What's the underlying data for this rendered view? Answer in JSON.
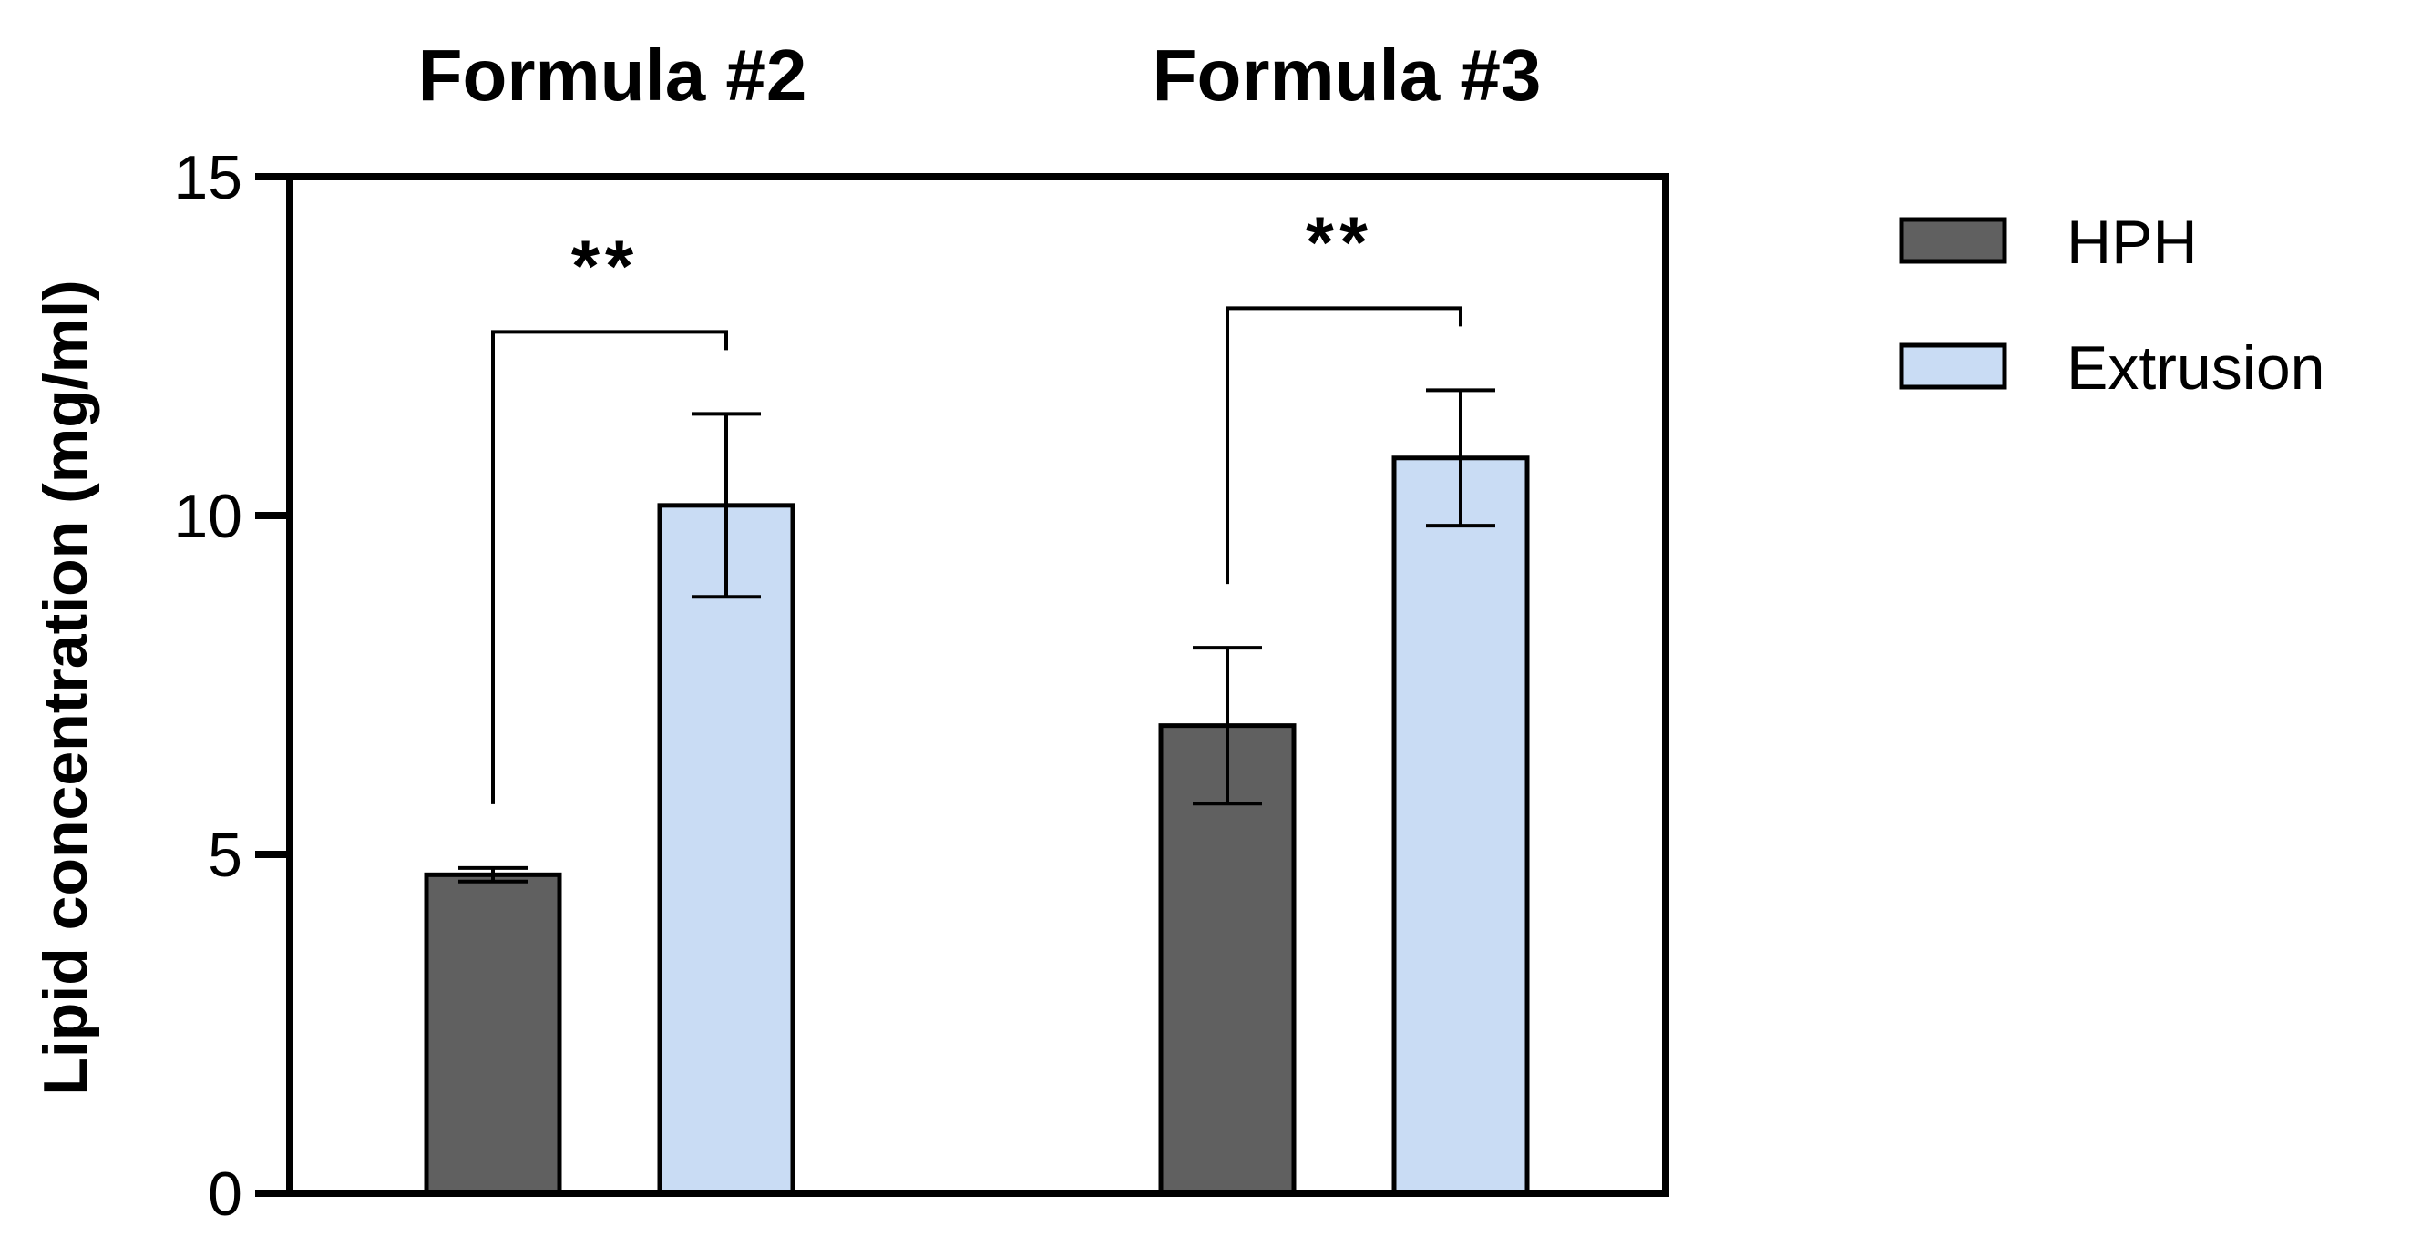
{
  "chart_data": {
    "type": "bar",
    "categories": [
      "Formula #2",
      "Formula #3"
    ],
    "series": [
      {
        "name": "HPH",
        "color": "#606060",
        "values": [
          4.7,
          6.9
        ],
        "errors": [
          0.1,
          1.15
        ]
      },
      {
        "name": "Extrusion",
        "color": "#c9dcf4",
        "values": [
          10.15,
          10.85
        ],
        "errors": [
          1.35,
          1.0
        ]
      }
    ],
    "ylabel": "Lipid concentration (mg/ml)",
    "ylim": [
      0,
      15
    ],
    "yticks": [
      "0",
      "5",
      "10",
      "15"
    ],
    "grid": false,
    "legend_position": "right",
    "significance": [
      {
        "category": "Formula #2",
        "label": "**"
      },
      {
        "category": "Formula #3",
        "label": "**"
      }
    ]
  }
}
